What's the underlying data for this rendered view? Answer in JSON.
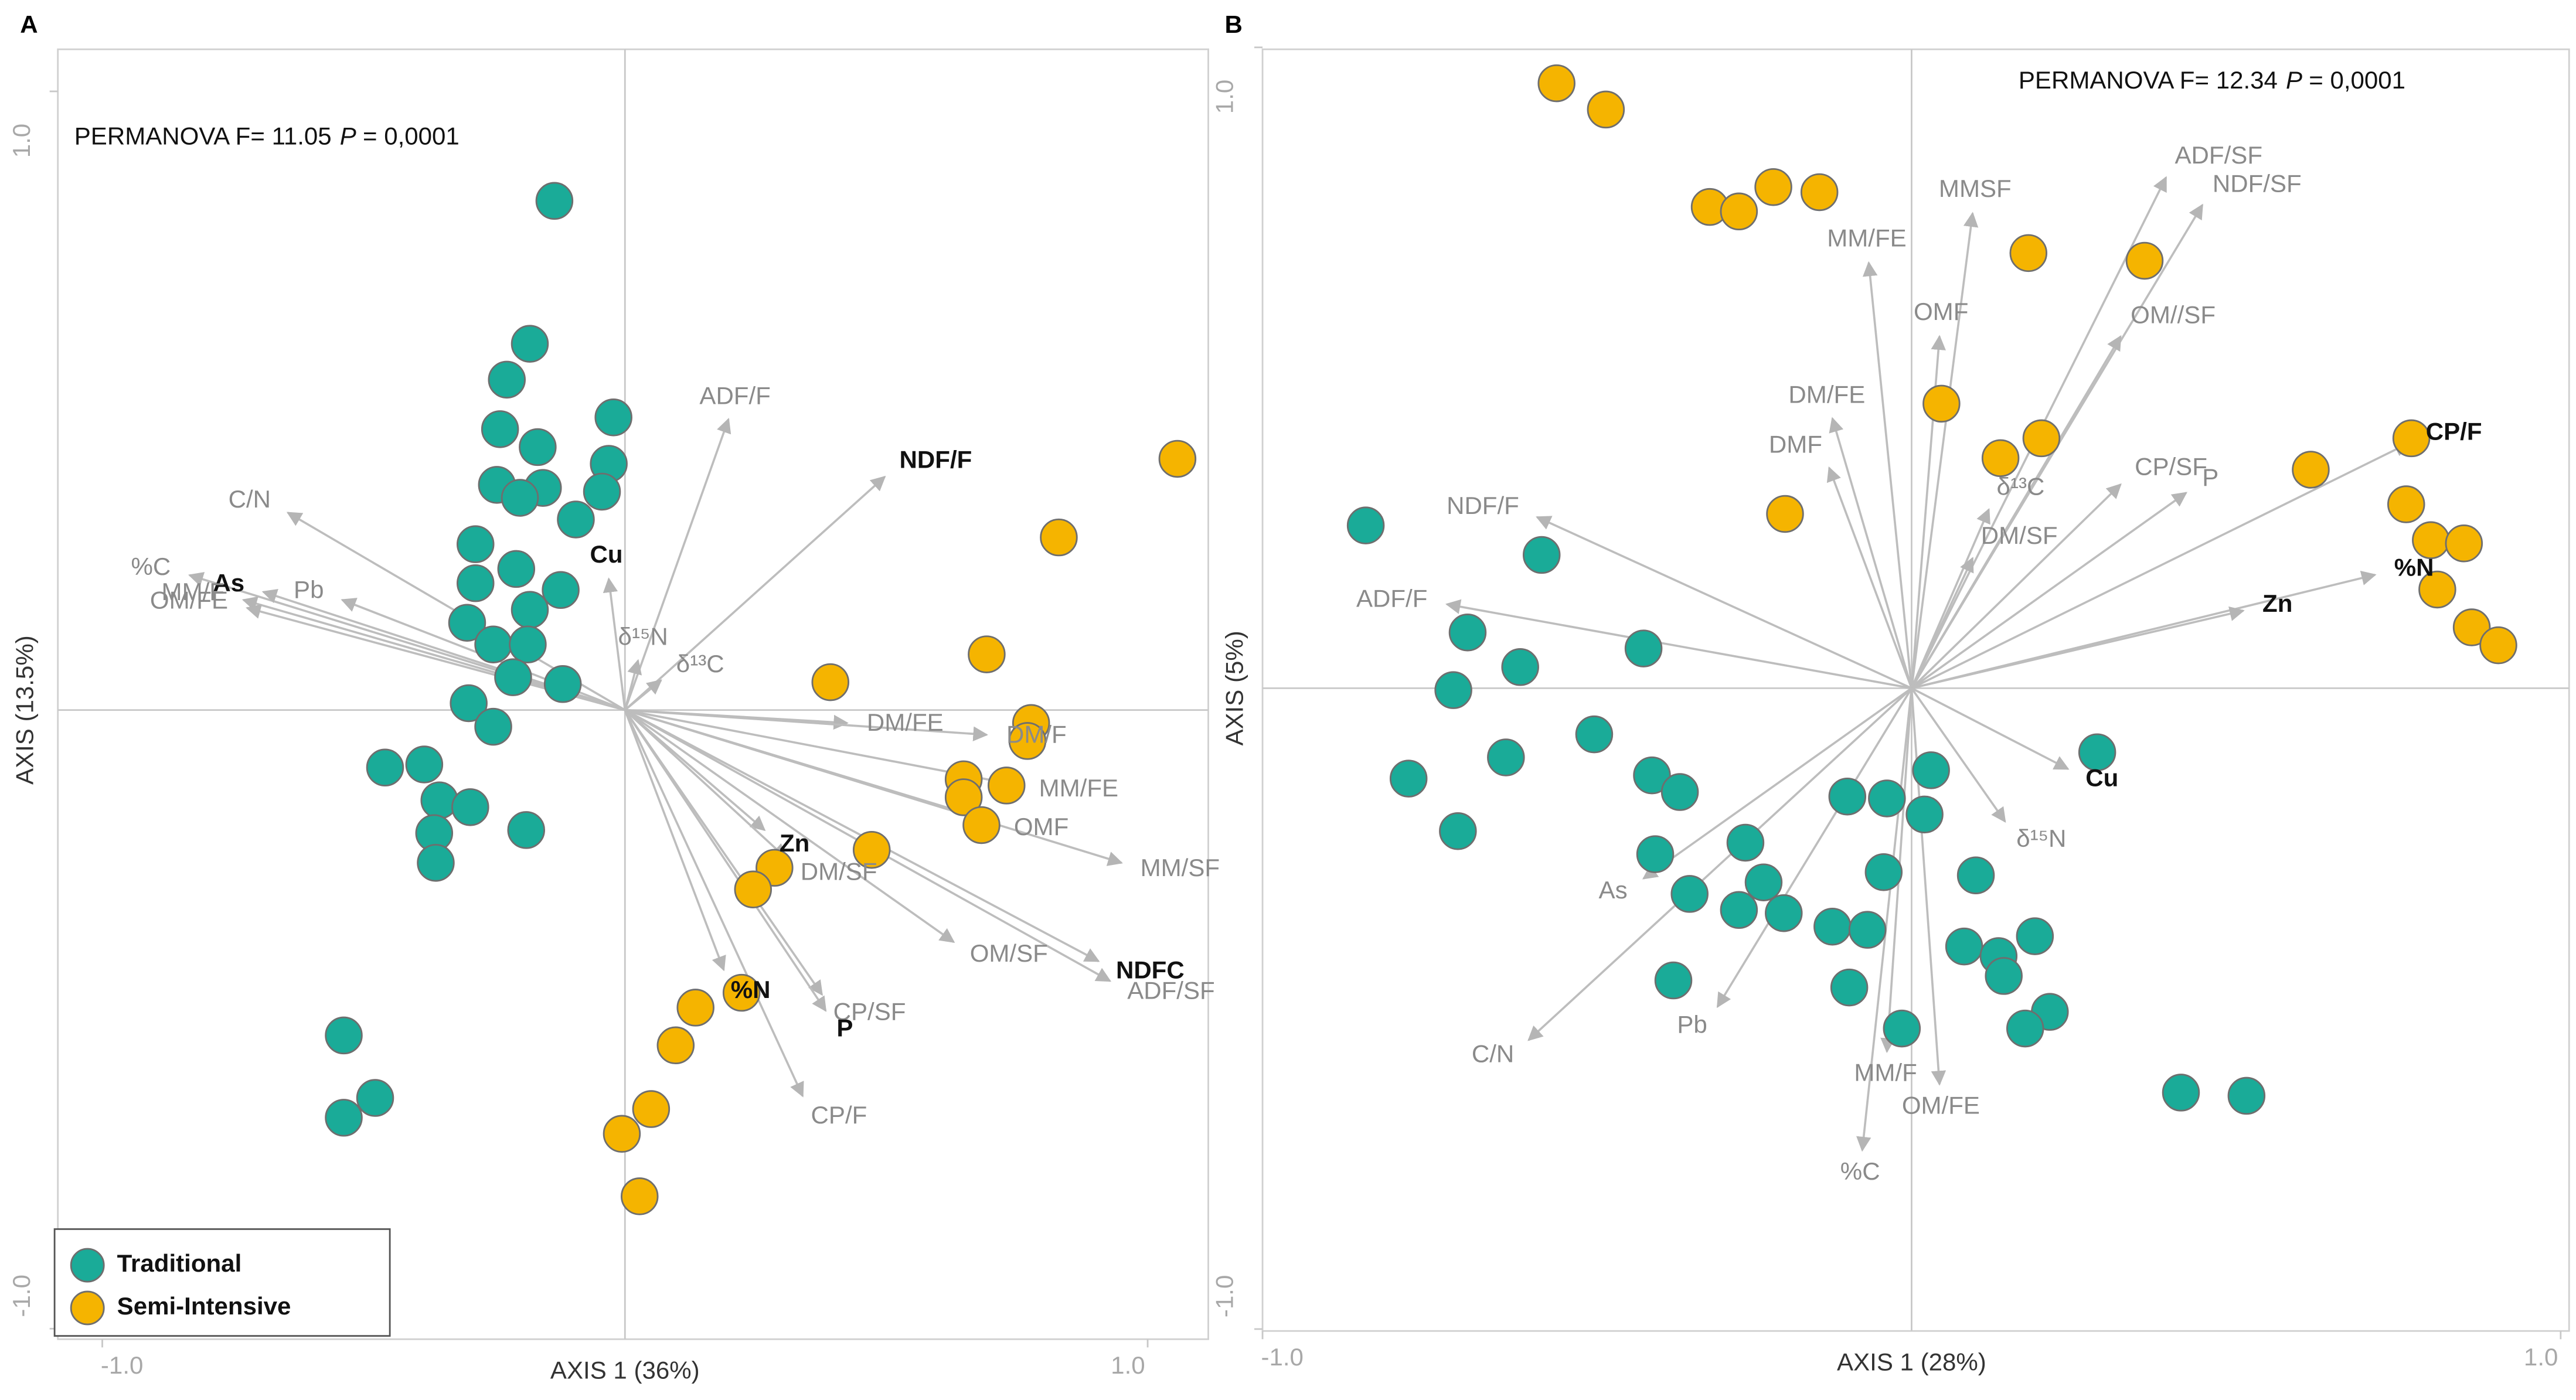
{
  "chart_data": [
    {
      "type": "biplot",
      "panel_label": "A",
      "annotation": {
        "text": "PERMANOVA  F= 11.05",
        "p": "P",
        "rest": "= 0,0001"
      },
      "xlabel": "AXIS 1 (36%)",
      "ylabel": "AXIS  (13.5%)",
      "xlim": [
        -1.085,
        1.116
      ],
      "ylim": [
        -1.017,
        1.068
      ],
      "xticks": [
        {
          "value": -1,
          "label": "-1.0"
        },
        {
          "value": 1,
          "label": "1.0"
        }
      ],
      "yticks": [
        {
          "value": -1,
          "label": "-1.0"
        },
        {
          "value": 1,
          "label": "1.0"
        }
      ],
      "legend": "lower left",
      "series": [
        {
          "name": "Traditional",
          "color": "#1aab98",
          "x": [
            -0.135,
            -0.182,
            -0.226,
            -0.239,
            -0.167,
            -0.245,
            -0.157,
            -0.201,
            -0.022,
            -0.031,
            -0.044,
            -0.094,
            -0.286,
            -0.208,
            -0.286,
            -0.123,
            -0.302,
            -0.182,
            -0.252,
            -0.186,
            -0.214,
            -0.119,
            -0.299,
            -0.252,
            -0.459,
            -0.384,
            -0.355,
            -0.296,
            -0.365,
            -0.362,
            -0.189,
            -0.538,
            -0.478,
            -0.538
          ],
          "y": [
            0.823,
            0.592,
            0.534,
            0.454,
            0.425,
            0.364,
            0.359,
            0.343,
            0.473,
            0.398,
            0.353,
            0.308,
            0.268,
            0.228,
            0.205,
            0.194,
            0.141,
            0.162,
            0.106,
            0.106,
            0.053,
            0.042,
            0.011,
            -0.027,
            -0.093,
            -0.088,
            -0.146,
            -0.157,
            -0.199,
            -0.247,
            -0.194,
            -0.526,
            -0.627,
            -0.659
          ]
        },
        {
          "name": "Semi-Intensive",
          "color": "#f5b400",
          "x": [
            1.057,
            0.83,
            0.692,
            0.393,
            0.777,
            0.77,
            0.648,
            0.73,
            0.648,
            0.682,
            0.472,
            0.286,
            0.245,
            0.223,
            0.135,
            0.097,
            0.05,
            -0.006,
            0.028
          ],
          "y": [
            0.406,
            0.279,
            0.09,
            0.045,
            -0.021,
            -0.05,
            -0.112,
            -0.122,
            -0.141,
            -0.186,
            -0.226,
            -0.255,
            -0.29,
            -0.457,
            -0.481,
            -0.542,
            -0.645,
            -0.685,
            -0.786
          ]
        }
      ],
      "vectors": [
        {
          "name": "ADF/F",
          "x": 0.198,
          "y": 0.47,
          "bold": false
        },
        {
          "name": "NDF/F",
          "x": 0.497,
          "y": 0.377,
          "bold": true
        },
        {
          "name": "C/N",
          "x": -0.645,
          "y": 0.319,
          "bold": false
        },
        {
          "name": "%C",
          "x": -0.833,
          "y": 0.218,
          "bold": false
        },
        {
          "name": "As",
          "x": -0.692,
          "y": 0.191,
          "bold": true
        },
        {
          "name": "MM/F",
          "x": -0.73,
          "y": 0.178,
          "bold": false
        },
        {
          "name": "Pb",
          "x": -0.541,
          "y": 0.178,
          "bold": false
        },
        {
          "name": "OM/FE",
          "x": -0.723,
          "y": 0.165,
          "bold": false
        },
        {
          "name": "Cu",
          "x": -0.031,
          "y": 0.212,
          "bold": true
        },
        {
          "name": "δ¹⁵N",
          "x": 0.025,
          "y": 0.08,
          "bold": false
        },
        {
          "name": "δ¹³C",
          "x": 0.069,
          "y": 0.048,
          "bold": false
        },
        {
          "name": "DM/FE",
          "x": 0.425,
          "y": -0.021,
          "bold": false
        },
        {
          "name": "DM/F",
          "x": 0.692,
          "y": -0.04,
          "bold": false
        },
        {
          "name": "MM/FE",
          "x": 0.755,
          "y": -0.122,
          "bold": false
        },
        {
          "name": "MM/SF",
          "x": 0.95,
          "y": -0.247,
          "bold": false
        },
        {
          "name": "OMF",
          "x": 0.708,
          "y": -0.181,
          "bold": false
        },
        {
          "name": "NDFC",
          "x": 0.906,
          "y": -0.406,
          "bold": true
        },
        {
          "name": "ADF/SF",
          "x": 0.928,
          "y": -0.438,
          "bold": false
        },
        {
          "name": "OM/SF",
          "x": 0.629,
          "y": -0.375,
          "bold": false
        },
        {
          "name": "Zn",
          "x": 0.267,
          "y": -0.194,
          "bold": true
        },
        {
          "name": "DM/SF",
          "x": 0.308,
          "y": -0.239,
          "bold": false
        },
        {
          "name": "CP/SF",
          "x": 0.377,
          "y": -0.46,
          "bold": false
        },
        {
          "name": "P",
          "x": 0.384,
          "y": -0.486,
          "bold": true
        },
        {
          "name": "%N",
          "x": 0.189,
          "y": -0.42,
          "bold": true
        },
        {
          "name": "CP/F",
          "x": 0.34,
          "y": -0.624,
          "bold": false
        }
      ]
    },
    {
      "type": "biplot",
      "panel_label": "B",
      "annotation": {
        "text": "PERMANOVA  F= 12.34",
        "p": "P",
        "rest": "= 0,0001"
      },
      "xlabel": "AXIS 1 (28%)",
      "ylabel": "AXIS  (5%)",
      "xlim": [
        -1.0,
        1.013
      ],
      "ylim": [
        -1.003,
        0.997
      ],
      "xticks": [
        {
          "value": -1,
          "label": "-1.0"
        },
        {
          "value": 1,
          "label": "1.0"
        }
      ],
      "yticks": [
        {
          "value": -1,
          "label": "-1.0"
        },
        {
          "value": 1,
          "label": "1.0"
        }
      ],
      "series": [
        {
          "color": "#1aab98",
          "x": [
            -0.841,
            -0.57,
            -0.684,
            -0.603,
            -0.413,
            -0.706,
            -0.625,
            -0.775,
            -0.699,
            -0.489,
            -0.4,
            -0.357,
            -0.395,
            -0.342,
            -0.256,
            -0.228,
            -0.266,
            -0.197,
            -0.122,
            -0.068,
            -0.099,
            -0.038,
            0.03,
            0.02,
            -0.043,
            0.286,
            0.099,
            0.19,
            0.081,
            0.134,
            0.142,
            0.213,
            0.175,
            -0.367,
            -0.096,
            -0.015,
            0.415,
            0.516
          ],
          "y": [
            0.254,
            0.208,
            0.087,
            0.033,
            0.062,
            -0.003,
            -0.108,
            -0.141,
            -0.223,
            -0.072,
            -0.136,
            -0.162,
            -0.259,
            -0.321,
            -0.241,
            -0.303,
            -0.346,
            -0.351,
            -0.372,
            -0.377,
            -0.169,
            -0.172,
            -0.128,
            -0.197,
            -0.287,
            -0.1,
            -0.292,
            -0.387,
            -0.403,
            -0.418,
            -0.449,
            -0.505,
            -0.531,
            -0.456,
            -0.467,
            -0.531,
            -0.631,
            -0.636
          ]
        },
        {
          "color": "#f5b400",
          "x": [
            -0.547,
            -0.471,
            -0.311,
            -0.266,
            -0.213,
            -0.142,
            0.18,
            0.359,
            0.046,
            0.2,
            0.137,
            -0.195,
            0.615,
            0.77,
            0.762,
            0.8,
            0.851,
            0.81,
            0.863,
            0.904
          ],
          "y": [
            0.944,
            0.903,
            0.751,
            0.744,
            0.782,
            0.774,
            0.679,
            0.667,
            0.444,
            0.39,
            0.359,
            0.272,
            0.341,
            0.39,
            0.287,
            0.231,
            0.226,
            0.154,
            0.095,
            0.067
          ]
        }
      ],
      "vectors": [
        {
          "name": "ADF/SF",
          "x": 0.392,
          "y": 0.797,
          "bold": false
        },
        {
          "name": "NDF/SF",
          "x": 0.448,
          "y": 0.754,
          "bold": false
        },
        {
          "name": "MMSF",
          "x": 0.094,
          "y": 0.741,
          "bold": false
        },
        {
          "name": "MM/FE",
          "x": -0.066,
          "y": 0.664,
          "bold": false
        },
        {
          "name": "OMF",
          "x": 0.043,
          "y": 0.549,
          "bold": false
        },
        {
          "name": "OM//SF",
          "x": 0.322,
          "y": 0.549,
          "bold": false
        },
        {
          "name": "DM/FE",
          "x": -0.122,
          "y": 0.421,
          "bold": false
        },
        {
          "name": "DMF",
          "x": -0.127,
          "y": 0.344,
          "bold": false
        },
        {
          "name": "δ¹³C",
          "x": 0.119,
          "y": 0.279,
          "bold": false
        },
        {
          "name": "CP/SF",
          "x": 0.322,
          "y": 0.318,
          "bold": false
        },
        {
          "name": "P",
          "x": 0.423,
          "y": 0.305,
          "bold": false
        },
        {
          "name": "DM/SF",
          "x": 0.094,
          "y": 0.203,
          "bold": false
        },
        {
          "name": "NDF/F",
          "x": -0.577,
          "y": 0.267,
          "bold": false
        },
        {
          "name": "ADF/F",
          "x": -0.716,
          "y": 0.131,
          "bold": false
        },
        {
          "name": "CP/F",
          "x": 0.765,
          "y": 0.382,
          "bold": true
        },
        {
          "name": "%N",
          "x": 0.714,
          "y": 0.177,
          "bold": true
        },
        {
          "name": "Zn",
          "x": 0.511,
          "y": 0.121,
          "bold": true
        },
        {
          "name": "Cu",
          "x": 0.241,
          "y": -0.126,
          "bold": true
        },
        {
          "name": "δ¹⁵N",
          "x": 0.144,
          "y": -0.208,
          "bold": false
        },
        {
          "name": "As",
          "x": -0.413,
          "y": -0.297,
          "bold": false
        },
        {
          "name": "C/N",
          "x": -0.59,
          "y": -0.549,
          "bold": false
        },
        {
          "name": "Pb",
          "x": -0.299,
          "y": -0.497,
          "bold": false
        },
        {
          "name": "MM/F",
          "x": -0.038,
          "y": -0.567,
          "bold": false
        },
        {
          "name": "%C",
          "x": -0.076,
          "y": -0.721,
          "bold": false
        },
        {
          "name": "OM/FE",
          "x": 0.043,
          "y": -0.618,
          "bold": false
        }
      ]
    }
  ]
}
